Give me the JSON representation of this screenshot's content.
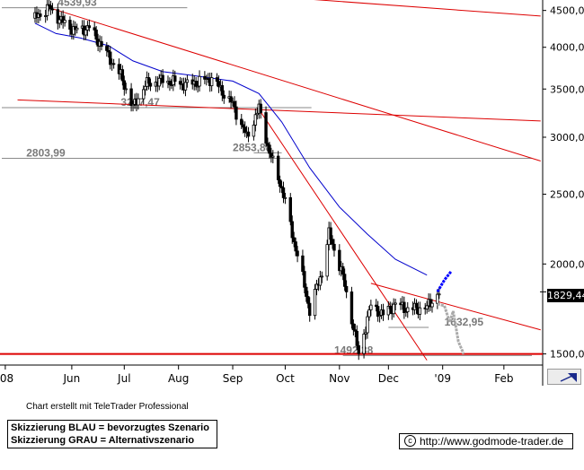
{
  "chart_data": {
    "type": "candlestick",
    "x_labels": [
      "'08",
      "Jun",
      "Jul",
      "Aug",
      "Sep",
      "Oct",
      "Nov",
      "Dec",
      "'09",
      "Feb"
    ],
    "y_ticks": [
      4500,
      4000,
      3500,
      3000,
      2500,
      2000,
      1500
    ],
    "y_tick_labels": [
      "4500,00",
      "4000,00",
      "3500,00",
      "3000,00",
      "2500,00",
      "2000,00",
      "1500,00"
    ],
    "ylim": [
      1460,
      4600
    ],
    "y_scale": "log",
    "last_value": 1829.44,
    "last_value_label": "1829,44",
    "levels": [
      {
        "value": 4539.93,
        "label": "4539,93"
      },
      {
        "value": 3297.47,
        "label": "3297,47"
      },
      {
        "value": 2803.99,
        "label": "2803,99"
      },
      {
        "value": 2853.88,
        "label": "2853,88"
      },
      {
        "value": 1632.95,
        "label": "1632,95"
      },
      {
        "value": 1492.38,
        "label": "1492,38"
      }
    ],
    "price_series": [
      {
        "t": "2008-05-20",
        "value": 4390
      },
      {
        "t": "2008-05-23",
        "value": 4450
      },
      {
        "t": "2008-05-28",
        "value": 4539.93
      },
      {
        "t": "2008-06-05",
        "value": 4330
      },
      {
        "t": "2008-06-12",
        "value": 4220
      },
      {
        "t": "2008-06-20",
        "value": 4260
      },
      {
        "t": "2008-06-30",
        "value": 3920
      },
      {
        "t": "2008-07-08",
        "value": 3650
      },
      {
        "t": "2008-07-15",
        "value": 3297.47
      },
      {
        "t": "2008-07-22",
        "value": 3550
      },
      {
        "t": "2008-08-01",
        "value": 3600
      },
      {
        "t": "2008-08-15",
        "value": 3550
      },
      {
        "t": "2008-08-29",
        "value": 3620
      },
      {
        "t": "2008-09-10",
        "value": 3330
      },
      {
        "t": "2008-09-18",
        "value": 3000
      },
      {
        "t": "2008-09-25",
        "value": 3290
      },
      {
        "t": "2008-10-01",
        "value": 2853.88
      },
      {
        "t": "2008-10-08",
        "value": 2550
      },
      {
        "t": "2008-10-15",
        "value": 2150
      },
      {
        "t": "2008-10-24",
        "value": 1720
      },
      {
        "t": "2008-10-31",
        "value": 1950
      },
      {
        "t": "2008-11-04",
        "value": 2200
      },
      {
        "t": "2008-11-11",
        "value": 1960
      },
      {
        "t": "2008-11-21",
        "value": 1492.38
      },
      {
        "t": "2008-11-28",
        "value": 1750
      },
      {
        "t": "2008-12-05",
        "value": 1700
      },
      {
        "t": "2008-12-12",
        "value": 1760
      },
      {
        "t": "2008-12-19",
        "value": 1730
      },
      {
        "t": "2008-12-30",
        "value": 1740
      },
      {
        "t": "2009-01-06",
        "value": 1829.44
      }
    ],
    "ma_series": [
      {
        "t": "2008-05-20",
        "value": 4320
      },
      {
        "t": "2008-06-01",
        "value": 4180
      },
      {
        "t": "2008-06-15",
        "value": 4120
      },
      {
        "t": "2008-07-01",
        "value": 4020
      },
      {
        "t": "2008-07-15",
        "value": 3830
      },
      {
        "t": "2008-08-01",
        "value": 3700
      },
      {
        "t": "2008-08-20",
        "value": 3650
      },
      {
        "t": "2008-09-10",
        "value": 3590
      },
      {
        "t": "2008-09-25",
        "value": 3450
      },
      {
        "t": "2008-10-08",
        "value": 3150
      },
      {
        "t": "2008-10-24",
        "value": 2720
      },
      {
        "t": "2008-11-10",
        "value": 2400
      },
      {
        "t": "2008-11-26",
        "value": 2200
      },
      {
        "t": "2008-12-12",
        "value": 2030
      },
      {
        "t": "2008-12-30",
        "value": 1930
      }
    ],
    "scenario_blue": [
      {
        "t": "2009-01-05",
        "value": 1830
      },
      {
        "t": "2009-01-09",
        "value": 1900
      },
      {
        "t": "2009-01-13",
        "value": 1955
      }
    ],
    "scenario_grey": [
      {
        "t": "2009-01-05",
        "value": 1760
      },
      {
        "t": "2009-01-09",
        "value": 1750
      },
      {
        "t": "2009-01-12",
        "value": 1660
      },
      {
        "t": "2009-01-14",
        "value": 1720
      },
      {
        "t": "2009-01-17",
        "value": 1560
      },
      {
        "t": "2009-01-20",
        "value": 1500
      }
    ],
    "trendlines": [
      {
        "t1": "2008-05-28",
        "v1": 4540,
        "t2": "2009-03-05",
        "v2": 2780
      },
      {
        "t1": "2008-05-10",
        "v1": 3380,
        "t2": "2009-03-05",
        "v2": 3160
      },
      {
        "t1": "2008-09-25",
        "v1": 3280,
        "t2": "2008-12-30",
        "v2": 1470
      },
      {
        "t1": "2008-11-28",
        "v1": 1880,
        "t2": "2009-03-05",
        "v2": 1620
      },
      {
        "t1": "2008-06-25",
        "v1": 4900,
        "t2": "2009-03-05",
        "v2": 4420
      }
    ],
    "support_line": 1500,
    "grid": false
  },
  "colors": {
    "price": "#000000",
    "moving_average": "#0000cc",
    "trendline": "#dd0000",
    "scenario_blue": "#0000ff",
    "scenario_grey": "#aaaaaa",
    "level_text": "#7a7a7a"
  },
  "footer": {
    "credit": "Chart erstellt mit TeleTrader Professional",
    "legend_blue": "Skizzierung BLAU = bevorzugtes Szenario",
    "legend_grey": "Skizzierung GRAU = Alternativszenario",
    "url": "http://www.godmode-trader.de",
    "copyright_icon": "copyright-icon",
    "nav_icon": "arrow-icon"
  }
}
